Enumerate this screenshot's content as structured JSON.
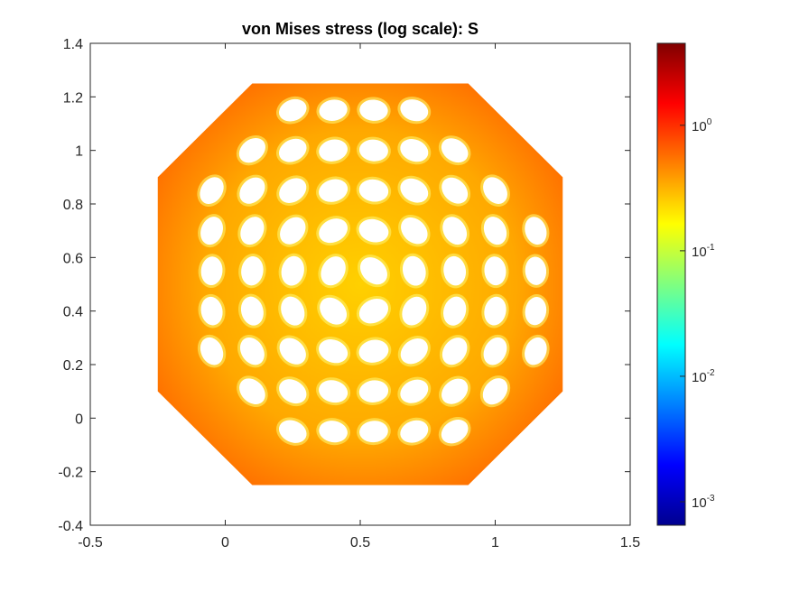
{
  "chart_data": {
    "type": "heatmap",
    "title": "von Mises stress (log scale): S",
    "xlabel": "",
    "ylabel": "",
    "xlim": [
      -0.5,
      1.5
    ],
    "ylim": [
      -0.4,
      1.4
    ],
    "x_ticks": [
      -0.5,
      0,
      0.5,
      1,
      1.5
    ],
    "x_tick_labels": [
      "-0.5",
      "0",
      "0.5",
      "1",
      "1.5"
    ],
    "y_ticks": [
      -0.4,
      -0.2,
      0,
      0.2,
      0.4,
      0.6,
      0.8,
      1,
      1.2,
      1.4
    ],
    "y_tick_labels": [
      "-0.4",
      "-0.2",
      "0",
      "0.2",
      "0.4",
      "0.6",
      "0.8",
      "1",
      "1.2",
      "1.4"
    ],
    "grid": false,
    "colormap": "jet",
    "colorbar": {
      "scale": "log",
      "range": [
        0.00065,
        4.5
      ],
      "ticks": [
        0.001,
        0.01,
        0.1,
        1
      ],
      "tick_bases": [
        "10",
        "10",
        "10",
        "10"
      ],
      "tick_exponents": [
        "-3",
        "-2",
        "-1",
        "0"
      ]
    },
    "domain_outline": [
      [
        0.1,
        -0.25
      ],
      [
        0.9,
        -0.25
      ],
      [
        1.25,
        0.1
      ],
      [
        1.25,
        0.9
      ],
      [
        0.9,
        1.25
      ],
      [
        0.1,
        1.25
      ],
      [
        -0.25,
        0.9
      ],
      [
        -0.25,
        0.1
      ]
    ],
    "hole_grid": {
      "x": [
        -0.05,
        0.1,
        0.25,
        0.4,
        0.55,
        0.7,
        0.85,
        1.0,
        1.15
      ],
      "y": [
        -0.05,
        0.1,
        0.25,
        0.4,
        0.55,
        0.7,
        0.85,
        1.0,
        1.15
      ]
    }
  }
}
